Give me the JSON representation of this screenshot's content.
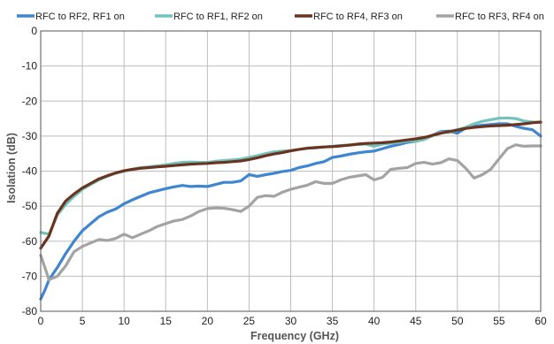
{
  "chart_data": {
    "type": "line",
    "title": "",
    "xlabel": "Frequency (GHz)",
    "ylabel": "Isolation (dB)",
    "xlim": [
      0,
      60
    ],
    "ylim": [
      -80,
      0
    ],
    "xticks": [
      0,
      5,
      10,
      15,
      20,
      25,
      30,
      35,
      40,
      45,
      50,
      55,
      60
    ],
    "yticks": [
      0,
      -10,
      -20,
      -30,
      -40,
      -50,
      -60,
      -70,
      -80
    ],
    "grid": true,
    "legend_position": "top",
    "series": [
      {
        "name": "RFC to RF2, RF1 on",
        "color": "#3F86D0",
        "points": [
          [
            0,
            -76.5
          ],
          [
            0.5,
            -74
          ],
          [
            1,
            -71
          ],
          [
            2,
            -67.5
          ],
          [
            3,
            -63.5
          ],
          [
            4,
            -60
          ],
          [
            5,
            -57
          ],
          [
            6,
            -55
          ],
          [
            7,
            -53
          ],
          [
            8,
            -51.7
          ],
          [
            9,
            -50.8
          ],
          [
            10,
            -49.3
          ],
          [
            11,
            -48.2
          ],
          [
            12,
            -47.2
          ],
          [
            13,
            -46.2
          ],
          [
            14,
            -45.6
          ],
          [
            15,
            -45
          ],
          [
            16,
            -44.5
          ],
          [
            17,
            -44.1
          ],
          [
            18,
            -44.4
          ],
          [
            19,
            -44.3
          ],
          [
            20,
            -44.4
          ],
          [
            21,
            -43.8
          ],
          [
            22,
            -43.2
          ],
          [
            23,
            -43.2
          ],
          [
            24,
            -42.8
          ],
          [
            25,
            -41
          ],
          [
            26,
            -41.5
          ],
          [
            27,
            -41
          ],
          [
            28,
            -40.6
          ],
          [
            29,
            -40.1
          ],
          [
            30,
            -39.8
          ],
          [
            31,
            -39
          ],
          [
            32,
            -38.5
          ],
          [
            33,
            -37.8
          ],
          [
            34,
            -37.3
          ],
          [
            35,
            -36.1
          ],
          [
            36,
            -35.7
          ],
          [
            37,
            -35.2
          ],
          [
            38,
            -34.8
          ],
          [
            39,
            -34.5
          ],
          [
            40,
            -34.3
          ],
          [
            41,
            -33.6
          ],
          [
            42,
            -32.9
          ],
          [
            43,
            -32.4
          ],
          [
            44,
            -31.8
          ],
          [
            45,
            -31.5
          ],
          [
            46,
            -30.9
          ],
          [
            47,
            -29.8
          ],
          [
            48,
            -28.7
          ],
          [
            49,
            -28.6
          ],
          [
            50,
            -29.2
          ],
          [
            51,
            -27.7
          ],
          [
            52,
            -27.2
          ],
          [
            53,
            -26.9
          ],
          [
            54,
            -26.7
          ],
          [
            55,
            -26.5
          ],
          [
            56,
            -26.5
          ],
          [
            57,
            -27.2
          ],
          [
            58,
            -27.8
          ],
          [
            59,
            -28.2
          ],
          [
            60,
            -30
          ]
        ]
      },
      {
        "name": "RFC to RF1, RF2 on",
        "color": "#72C3BB",
        "points": [
          [
            0,
            -57.5
          ],
          [
            1,
            -58
          ],
          [
            2,
            -52.5
          ],
          [
            3,
            -49.5
          ],
          [
            4,
            -47.2
          ],
          [
            5,
            -45.2
          ],
          [
            6,
            -43.8
          ],
          [
            7,
            -42.5
          ],
          [
            8,
            -41.5
          ],
          [
            9,
            -40.6
          ],
          [
            10,
            -40
          ],
          [
            11,
            -39.5
          ],
          [
            12,
            -39
          ],
          [
            13,
            -38.8
          ],
          [
            14,
            -38.5
          ],
          [
            15,
            -38.2
          ],
          [
            16,
            -37.8
          ],
          [
            17,
            -37.5
          ],
          [
            18,
            -37.4
          ],
          [
            19,
            -37.5
          ],
          [
            20,
            -37.5
          ],
          [
            21,
            -37.2
          ],
          [
            22,
            -37
          ],
          [
            23,
            -36.8
          ],
          [
            24,
            -36.6
          ],
          [
            25,
            -36.1
          ],
          [
            26,
            -35.6
          ],
          [
            27,
            -35
          ],
          [
            28,
            -34.5
          ],
          [
            29,
            -34.3
          ],
          [
            30,
            -34.2
          ],
          [
            31,
            -33.8
          ],
          [
            32,
            -33.4
          ],
          [
            33,
            -33.2
          ],
          [
            34,
            -33.1
          ],
          [
            35,
            -32.9
          ],
          [
            36,
            -32.7
          ],
          [
            37,
            -32.5
          ],
          [
            38,
            -32.4
          ],
          [
            39,
            -32.3
          ],
          [
            40,
            -32.9
          ],
          [
            41,
            -32.3
          ],
          [
            42,
            -32
          ],
          [
            43,
            -31.8
          ],
          [
            44,
            -31.4
          ],
          [
            45,
            -31.5
          ],
          [
            46,
            -31
          ],
          [
            47,
            -29.9
          ],
          [
            48,
            -28.9
          ],
          [
            49,
            -29
          ],
          [
            50,
            -28.2
          ],
          [
            51,
            -27.5
          ],
          [
            52,
            -26.5
          ],
          [
            53,
            -25.8
          ],
          [
            54,
            -25.3
          ],
          [
            55,
            -24.9
          ],
          [
            56,
            -24.8
          ],
          [
            57,
            -25
          ],
          [
            58,
            -25.7
          ],
          [
            59,
            -26
          ],
          [
            60,
            -26.1
          ]
        ]
      },
      {
        "name": "RFC to RF4, RF3 on",
        "color": "#6B3421",
        "points": [
          [
            0,
            -62
          ],
          [
            1,
            -58.5
          ],
          [
            2,
            -52
          ],
          [
            3,
            -48.5
          ],
          [
            4,
            -46.5
          ],
          [
            5,
            -44.8
          ],
          [
            6,
            -43.5
          ],
          [
            7,
            -42.2
          ],
          [
            8,
            -41.3
          ],
          [
            9,
            -40.5
          ],
          [
            10,
            -39.9
          ],
          [
            11,
            -39.5
          ],
          [
            12,
            -39.2
          ],
          [
            13,
            -39
          ],
          [
            14,
            -38.8
          ],
          [
            15,
            -38.6
          ],
          [
            16,
            -38.4
          ],
          [
            17,
            -38.2
          ],
          [
            18,
            -38
          ],
          [
            19,
            -37.9
          ],
          [
            20,
            -37.8
          ],
          [
            21,
            -37.6
          ],
          [
            22,
            -37.5
          ],
          [
            23,
            -37.3
          ],
          [
            24,
            -37.1
          ],
          [
            25,
            -36.7
          ],
          [
            26,
            -36.2
          ],
          [
            27,
            -35.6
          ],
          [
            28,
            -35.1
          ],
          [
            29,
            -34.7
          ],
          [
            30,
            -34.2
          ],
          [
            31,
            -33.8
          ],
          [
            32,
            -33.5
          ],
          [
            33,
            -33.3
          ],
          [
            34,
            -33.1
          ],
          [
            35,
            -33
          ],
          [
            36,
            -32.8
          ],
          [
            37,
            -32.6
          ],
          [
            38,
            -32.3
          ],
          [
            39,
            -32.1
          ],
          [
            40,
            -32
          ],
          [
            41,
            -31.9
          ],
          [
            42,
            -31.7
          ],
          [
            43,
            -31.4
          ],
          [
            44,
            -31.1
          ],
          [
            45,
            -30.8
          ],
          [
            46,
            -30.4
          ],
          [
            47,
            -29.8
          ],
          [
            48,
            -29.2
          ],
          [
            49,
            -28.7
          ],
          [
            50,
            -28.3
          ],
          [
            51,
            -27.8
          ],
          [
            52,
            -27.5
          ],
          [
            53,
            -27.3
          ],
          [
            54,
            -27.1
          ],
          [
            55,
            -27
          ],
          [
            56,
            -26.9
          ],
          [
            57,
            -26.7
          ],
          [
            58,
            -26.5
          ],
          [
            59,
            -26.2
          ],
          [
            60,
            -26
          ]
        ]
      },
      {
        "name": "RFC to RF3, RF4 on",
        "color": "#A3A3A3",
        "points": [
          [
            0,
            -64
          ],
          [
            1,
            -71
          ],
          [
            2,
            -70
          ],
          [
            3,
            -67
          ],
          [
            4,
            -63
          ],
          [
            5,
            -61.5
          ],
          [
            6,
            -60.5
          ],
          [
            7,
            -59.5
          ],
          [
            8,
            -59.8
          ],
          [
            9,
            -59.2
          ],
          [
            10,
            -58
          ],
          [
            11,
            -59
          ],
          [
            12,
            -58
          ],
          [
            13,
            -57
          ],
          [
            14,
            -55.8
          ],
          [
            15,
            -55
          ],
          [
            16,
            -54.2
          ],
          [
            17,
            -53.8
          ],
          [
            18,
            -52.8
          ],
          [
            19,
            -51.5
          ],
          [
            20,
            -50.7
          ],
          [
            21,
            -50.5
          ],
          [
            22,
            -50.6
          ],
          [
            23,
            -51
          ],
          [
            24,
            -51.5
          ],
          [
            25,
            -50
          ],
          [
            26,
            -47.5
          ],
          [
            27,
            -47
          ],
          [
            28,
            -47.2
          ],
          [
            29,
            -46
          ],
          [
            30,
            -45.2
          ],
          [
            31,
            -44.6
          ],
          [
            32,
            -44
          ],
          [
            33,
            -43
          ],
          [
            34,
            -43.5
          ],
          [
            35,
            -43.5
          ],
          [
            36,
            -42.5
          ],
          [
            37,
            -41.8
          ],
          [
            38,
            -41.4
          ],
          [
            39,
            -41
          ],
          [
            40,
            -42.5
          ],
          [
            41,
            -41.8
          ],
          [
            42,
            -39.5
          ],
          [
            43,
            -39.2
          ],
          [
            44,
            -39
          ],
          [
            45,
            -37.8
          ],
          [
            46,
            -37.5
          ],
          [
            47,
            -38
          ],
          [
            48,
            -37.6
          ],
          [
            49,
            -36.5
          ],
          [
            50,
            -37
          ],
          [
            51,
            -39.2
          ],
          [
            52,
            -42
          ],
          [
            53,
            -41
          ],
          [
            54,
            -39.5
          ],
          [
            55,
            -36.5
          ],
          [
            56,
            -33.6
          ],
          [
            57,
            -32.5
          ],
          [
            58,
            -32.9
          ],
          [
            59,
            -32.8
          ],
          [
            60,
            -32.8
          ]
        ]
      }
    ]
  }
}
